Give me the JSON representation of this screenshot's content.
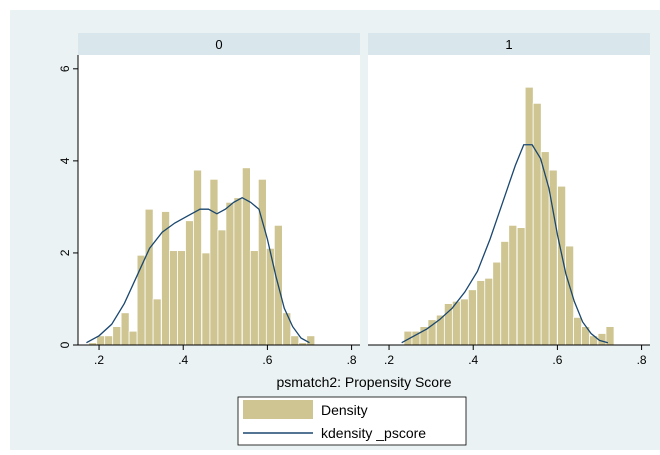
{
  "chart_data": {
    "type": "bar",
    "title": "",
    "xlabel": "psmatch2: Propensity Score",
    "ylabel": "",
    "xlim": [
      0.15,
      0.82
    ],
    "ylim": [
      0,
      6.3
    ],
    "x_ticks": [
      ".2",
      ".4",
      ".6",
      ".8"
    ],
    "x_tick_values": [
      0.2,
      0.4,
      0.6,
      0.8
    ],
    "y_ticks": [
      "0",
      "2",
      "4",
      "6"
    ],
    "y_tick_values": [
      0,
      2,
      4,
      6
    ],
    "grid": false,
    "legend_position": "bottom",
    "bin_width": 0.0192,
    "colors": {
      "background": "#eaf2f3",
      "plot": "#ffffff",
      "strip": "#d9e6eb",
      "bar_fill": "#cfc592",
      "bar_edge": "#ffffff",
      "density_line": "#1a476f",
      "text": "#000000"
    },
    "legend": [
      {
        "label": "Density",
        "kind": "bar"
      },
      {
        "label": "kdensity _pscore",
        "kind": "line"
      }
    ],
    "panels": [
      {
        "label": "0",
        "hist_x": [
          0.185,
          0.204,
          0.223,
          0.242,
          0.262,
          0.281,
          0.3,
          0.319,
          0.338,
          0.358,
          0.377,
          0.396,
          0.415,
          0.434,
          0.454,
          0.473,
          0.492,
          0.511,
          0.53,
          0.55,
          0.569,
          0.588,
          0.607,
          0.626,
          0.646,
          0.665,
          0.684,
          0.703
        ],
        "hist_y": [
          0.05,
          0.2,
          0.2,
          0.4,
          0.7,
          0.3,
          1.95,
          2.95,
          1.0,
          2.9,
          2.05,
          2.05,
          2.7,
          3.8,
          2.0,
          3.6,
          2.5,
          3.1,
          3.2,
          3.85,
          2.05,
          3.6,
          2.1,
          2.6,
          0.7,
          0.2,
          0.05,
          0.2
        ],
        "kde_x": [
          0.17,
          0.2,
          0.23,
          0.26,
          0.29,
          0.32,
          0.35,
          0.38,
          0.41,
          0.44,
          0.46,
          0.48,
          0.5,
          0.52,
          0.54,
          0.56,
          0.58,
          0.6,
          0.62,
          0.64,
          0.66,
          0.68,
          0.7
        ],
        "kde_y": [
          0.05,
          0.2,
          0.45,
          0.9,
          1.5,
          2.1,
          2.45,
          2.65,
          2.8,
          2.95,
          2.95,
          2.85,
          2.95,
          3.1,
          3.2,
          3.1,
          2.95,
          2.3,
          1.5,
          0.8,
          0.4,
          0.15,
          0.05
        ]
      },
      {
        "label": "1",
        "hist_x": [
          0.245,
          0.264,
          0.283,
          0.302,
          0.322,
          0.341,
          0.36,
          0.379,
          0.398,
          0.418,
          0.437,
          0.456,
          0.475,
          0.494,
          0.514,
          0.533,
          0.552,
          0.571,
          0.59,
          0.61,
          0.629,
          0.648,
          0.667,
          0.686,
          0.706,
          0.725
        ],
        "hist_y": [
          0.3,
          0.3,
          0.4,
          0.55,
          0.65,
          0.9,
          0.95,
          1.0,
          1.2,
          1.4,
          1.45,
          1.8,
          2.25,
          2.6,
          2.55,
          5.6,
          5.25,
          4.2,
          3.8,
          3.45,
          2.15,
          0.6,
          0.4,
          0.2,
          0.25,
          0.4
        ],
        "kde_x": [
          0.23,
          0.26,
          0.29,
          0.32,
          0.35,
          0.38,
          0.41,
          0.44,
          0.47,
          0.5,
          0.52,
          0.54,
          0.56,
          0.58,
          0.6,
          0.62,
          0.64,
          0.66,
          0.68,
          0.7,
          0.72
        ],
        "kde_y": [
          0.05,
          0.2,
          0.35,
          0.55,
          0.8,
          1.15,
          1.6,
          2.3,
          3.1,
          3.9,
          4.35,
          4.35,
          4.05,
          3.4,
          2.4,
          1.55,
          0.95,
          0.5,
          0.25,
          0.1,
          0.05
        ]
      }
    ]
  }
}
